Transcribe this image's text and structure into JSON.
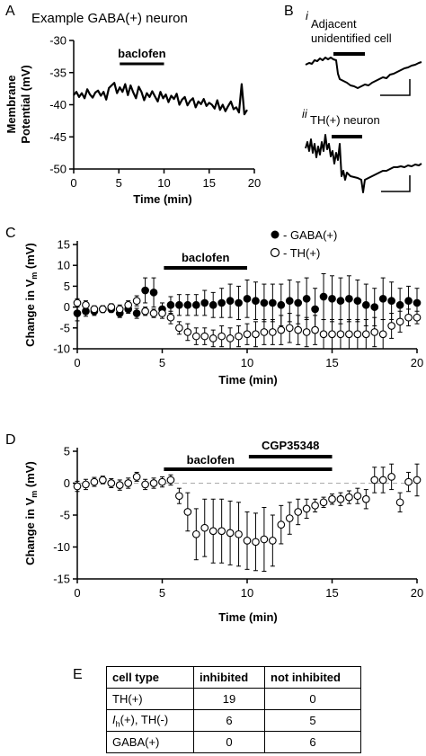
{
  "panels": {
    "A": {
      "letter": "A",
      "title": "Example GABA(+) neuron",
      "bar_label": "baclofen",
      "chart_data": {
        "type": "line",
        "xlabel": "Time (min)",
        "ylabel_line1": "Membrane",
        "ylabel_line2": "Potential (mV)",
        "xlim": [
          0,
          20
        ],
        "ylim": [
          -50,
          -30
        ],
        "xticks": [
          0,
          5,
          10,
          15,
          20
        ],
        "yticks": [
          -30,
          -35,
          -40,
          -45,
          -50
        ],
        "baclofen_interval": [
          5.1,
          10.0
        ],
        "x": [
          0.0,
          0.3,
          0.6,
          0.9,
          1.2,
          1.5,
          1.8,
          2.1,
          2.4,
          2.7,
          3.0,
          3.3,
          3.6,
          3.9,
          4.2,
          4.5,
          4.8,
          5.1,
          5.4,
          5.7,
          6.0,
          6.3,
          6.6,
          6.9,
          7.2,
          7.5,
          7.8,
          8.1,
          8.4,
          8.7,
          9.0,
          9.3,
          9.6,
          9.9,
          10.2,
          10.5,
          10.8,
          11.1,
          11.4,
          11.7,
          12.0,
          12.3,
          12.6,
          12.9,
          13.2,
          13.5,
          13.8,
          14.1,
          14.4,
          14.7,
          15.0,
          15.3,
          15.6,
          15.9,
          16.2,
          16.5,
          16.8,
          17.1,
          17.4,
          17.7,
          18.0,
          18.3,
          18.6,
          18.9,
          19.2
        ],
        "y": [
          -38.5,
          -38.0,
          -38.8,
          -38.2,
          -39.0,
          -37.6,
          -38.4,
          -38.9,
          -38.1,
          -37.8,
          -38.6,
          -38.0,
          -39.2,
          -37.4,
          -37.0,
          -36.6,
          -38.2,
          -37.3,
          -38.0,
          -36.8,
          -38.5,
          -37.0,
          -38.1,
          -39.0,
          -37.2,
          -38.0,
          -39.3,
          -38.2,
          -38.8,
          -37.9,
          -38.7,
          -39.5,
          -38.0,
          -39.0,
          -38.4,
          -39.6,
          -38.6,
          -39.1,
          -38.3,
          -40.0,
          -39.2,
          -38.8,
          -40.1,
          -39.4,
          -39.0,
          -40.4,
          -39.5,
          -39.9,
          -39.1,
          -40.2,
          -39.7,
          -40.0,
          -40.6,
          -39.3,
          -40.8,
          -40.0,
          -41.0,
          -40.2,
          -39.5,
          -40.7,
          -40.4,
          -41.2,
          -36.8,
          -41.5,
          -40.8
        ]
      }
    },
    "B": {
      "letter": "B",
      "i_label": "i",
      "i_text_line1": "Adjacent",
      "i_text_line2": "unidentified cell",
      "ii_label": "ii",
      "ii_text": "TH(+) neuron"
    },
    "C": {
      "letter": "C",
      "bar_label": "baclofen",
      "legend": [
        {
          "marker": "filled",
          "label": "- GABA(+)"
        },
        {
          "marker": "open",
          "label": "- TH(+)"
        }
      ],
      "chart_data": {
        "type": "scatter",
        "xlabel": "Time (min)",
        "ylabel_main": "Change in V",
        "ylabel_sub": "m",
        "ylabel_unit": " (mV)",
        "xlim": [
          0,
          20
        ],
        "ylim": [
          -10,
          15
        ],
        "xticks": [
          0,
          5,
          10,
          15,
          20
        ],
        "yticks": [
          15,
          10,
          5,
          0,
          -5,
          -10
        ],
        "baclofen_interval": [
          5.1,
          10.0
        ],
        "series": [
          {
            "name": "GABA(+)",
            "marker": "filled",
            "x": [
              0,
              0.5,
              1,
              1.5,
              2,
              2.5,
              3,
              3.5,
              4,
              4.5,
              5,
              5.5,
              6,
              6.5,
              7,
              7.5,
              8,
              8.5,
              9,
              9.5,
              10,
              10.5,
              11,
              11.5,
              12,
              12.5,
              13,
              13.5,
              14,
              14.5,
              15,
              15.5,
              16,
              16.5,
              17,
              17.5,
              18,
              18.5,
              19,
              19.5,
              20
            ],
            "y": [
              -1.5,
              -1,
              -1,
              -0.5,
              -0.5,
              -1.5,
              -0.5,
              -1.5,
              4,
              3.5,
              -0.5,
              0.5,
              0.5,
              0.5,
              0.5,
              1,
              0.5,
              1,
              1.5,
              1,
              2,
              1.5,
              1,
              1,
              0.5,
              1.5,
              1,
              2,
              -0.5,
              2.5,
              2,
              1.5,
              2,
              1.5,
              0.5,
              0,
              2,
              1.5,
              0.5,
              1.5,
              1
            ],
            "err": [
              1.8,
              1.2,
              1.0,
              0.8,
              0.8,
              1.0,
              1.0,
              1.2,
              3.0,
              3.5,
              1.5,
              2.0,
              2.5,
              2.5,
              2.5,
              3.0,
              3.0,
              3.5,
              4.0,
              4.0,
              4.5,
              4.5,
              4.5,
              4.5,
              5.0,
              5.0,
              5.0,
              5.0,
              5.0,
              5.5,
              5.5,
              5.5,
              5.5,
              5.0,
              5.0,
              4.5,
              5.0,
              4.5,
              4.0,
              3.5,
              3.5
            ]
          },
          {
            "name": "TH(+)",
            "marker": "open",
            "x": [
              0,
              0.5,
              1,
              1.5,
              2,
              2.5,
              3,
              3.5,
              4,
              4.5,
              5,
              5.5,
              6,
              6.5,
              7,
              7.5,
              8,
              8.5,
              9,
              9.5,
              10,
              10.5,
              11,
              11.5,
              12,
              12.5,
              13,
              13.5,
              14,
              14.5,
              15,
              15.5,
              16,
              16.5,
              17,
              17.5,
              18,
              18.5,
              19,
              19.5,
              20
            ],
            "y": [
              1,
              0.5,
              -0.5,
              -0.5,
              0,
              -0.5,
              0.5,
              1.5,
              -1,
              -1.5,
              -1.5,
              -2.5,
              -5,
              -6,
              -7,
              -7,
              -7.5,
              -7,
              -7.5,
              -7,
              -6.5,
              -6.5,
              -6,
              -6,
              -5.5,
              -5,
              -5.5,
              -6,
              -5.5,
              -6.5,
              -6.5,
              -6.5,
              -6.5,
              -6.5,
              -6.5,
              -6,
              -6.5,
              -4.5,
              -3.5,
              -2.5,
              -2.5
            ],
            "err": [
              1.0,
              1.0,
              0.8,
              0.8,
              0.8,
              1.0,
              1.0,
              1.2,
              1.0,
              1.0,
              1.2,
              1.5,
              1.5,
              2.0,
              2.0,
              2.0,
              2.0,
              2.5,
              2.5,
              2.5,
              2.5,
              3.0,
              3.0,
              3.0,
              3.5,
              3.5,
              3.5,
              3.5,
              3.5,
              3.5,
              3.5,
              3.5,
              3.5,
              3.5,
              3.5,
              3.5,
              3.5,
              3.0,
              2.5,
              2.0,
              1.5
            ]
          }
        ]
      }
    },
    "D": {
      "letter": "D",
      "bar1_label": "baclofen",
      "bar2_label": "CGP35348",
      "chart_data": {
        "type": "scatter",
        "xlabel": "Time (min)",
        "ylabel_main": "Change in V",
        "ylabel_sub": "m",
        "ylabel_unit": " (mV)",
        "xlim": [
          0,
          20
        ],
        "ylim": [
          -15,
          5
        ],
        "xticks": [
          0,
          5,
          10,
          15,
          20
        ],
        "yticks": [
          5,
          0,
          -5,
          -10,
          -15
        ],
        "baclofen_interval": [
          5.1,
          15.0
        ],
        "cgp_interval": [
          10.1,
          15.0
        ],
        "zero_line": true,
        "series": [
          {
            "name": "",
            "marker": "open",
            "x": [
              0,
              0.5,
              1,
              1.5,
              2,
              2.5,
              3,
              3.5,
              4,
              4.5,
              5,
              5.5,
              6,
              6.5,
              7,
              7.5,
              8,
              8.5,
              9,
              9.5,
              10,
              10.5,
              11,
              11.5,
              12,
              12.5,
              13,
              13.5,
              14,
              14.5,
              15,
              15.5,
              16,
              16.5,
              17,
              17.5,
              18,
              18.5,
              19,
              19.5,
              20
            ],
            "y": [
              -0.5,
              -0.2,
              0.2,
              0.5,
              0,
              -0.3,
              0,
              1,
              -0.2,
              0,
              0.2,
              0.5,
              -2,
              -4.5,
              -8,
              -7,
              -7.5,
              -7.5,
              -7.8,
              -8,
              -9,
              -9.2,
              -8.8,
              -9,
              -6.5,
              -5.5,
              -4.5,
              -4,
              -3.5,
              -3,
              -2.5,
              -2.5,
              -2.2,
              -2,
              -2.5,
              0.5,
              0.5,
              1,
              -3,
              0.2,
              0.5
            ],
            "err": [
              0.8,
              0.8,
              0.7,
              0.6,
              0.7,
              0.8,
              0.8,
              0.7,
              0.8,
              0.8,
              0.8,
              0.8,
              1.2,
              3.0,
              4.0,
              4.5,
              5.0,
              5.0,
              5.0,
              5.0,
              4.5,
              4.5,
              5.0,
              4.0,
              3.0,
              2.5,
              2.0,
              1.5,
              1.0,
              0.8,
              0.8,
              1.0,
              1.0,
              1.2,
              1.5,
              2.0,
              2.0,
              2.0,
              1.5,
              1.5,
              2.5
            ]
          }
        ]
      }
    },
    "E": {
      "letter": "E",
      "table": {
        "headers": [
          "cell type",
          "inhibited",
          "not inhibited"
        ],
        "rows": [
          {
            "type_main": "TH(+)",
            "type_sub": "",
            "type_rest": "",
            "inhibited": "19",
            "not_inhibited": "0"
          },
          {
            "type_main": "I",
            "type_sub": "h",
            "type_rest": "(+), TH(-)",
            "inhibited": "6",
            "not_inhibited": "5"
          },
          {
            "type_main": "GABA(+)",
            "type_sub": "",
            "type_rest": "",
            "inhibited": "0",
            "not_inhibited": "6"
          }
        ]
      }
    }
  }
}
